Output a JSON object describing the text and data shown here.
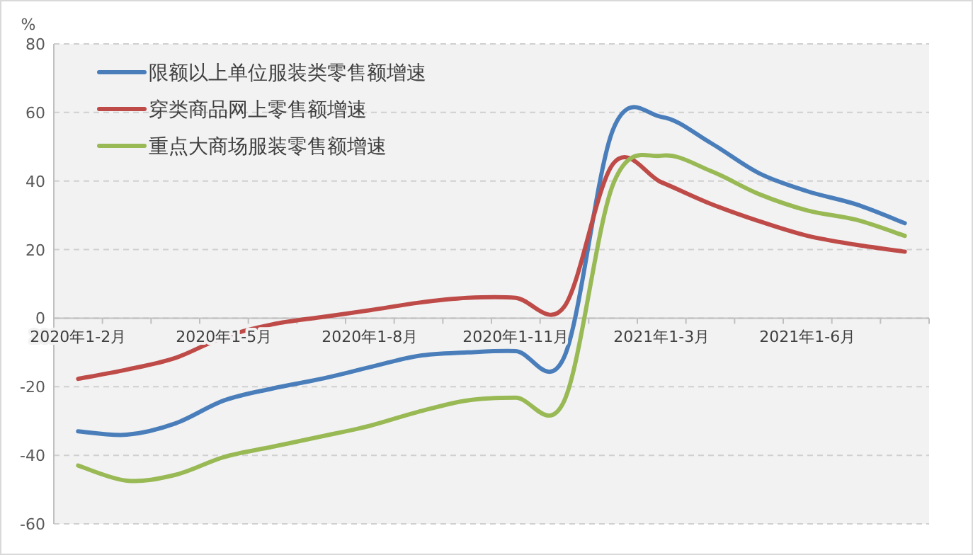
{
  "chart_data": {
    "type": "line",
    "ylabel": "%",
    "categories": [
      "2020年1-2月",
      null,
      null,
      "2020年1-5月",
      null,
      null,
      "2020年1-8月",
      null,
      null,
      "2020年1-11月",
      null,
      null,
      "2021年1-3月",
      null,
      null,
      "2021年1-6月",
      null,
      null
    ],
    "series": [
      {
        "name": "限额以上单位服装类零售额增速",
        "color": "#4a7ebb",
        "values": [
          -33,
          -34,
          -30.7,
          -24,
          -20.5,
          -17.7,
          -14.3,
          -11,
          -10,
          -9.6,
          -11.2,
          55,
          58.7,
          51.2,
          42.3,
          37,
          33.2,
          27.7
        ]
      },
      {
        "name": "穿类商品网上零售额增速",
        "color": "#be4b48",
        "values": [
          -17.7,
          -15,
          -11.6,
          -5.5,
          -1.8,
          0.3,
          2.3,
          4.5,
          5.9,
          5.9,
          3.4,
          45,
          39.6,
          33.4,
          28.3,
          24,
          21.4,
          19.4
        ]
      },
      {
        "name": "重点大商场服装零售额增速",
        "color": "#98b954",
        "values": [
          -43,
          -47.4,
          -45.7,
          -40.5,
          -37.5,
          -34.5,
          -31.4,
          -27.3,
          -24,
          -23.2,
          -24,
          39,
          47.4,
          43,
          36.2,
          31.4,
          28.7,
          24
        ]
      }
    ],
    "ylim": [
      -60,
      80
    ],
    "yticks": [
      -60,
      -40,
      -20,
      0,
      20,
      40,
      60,
      80
    ],
    "grid": "y",
    "legend": "top left"
  }
}
